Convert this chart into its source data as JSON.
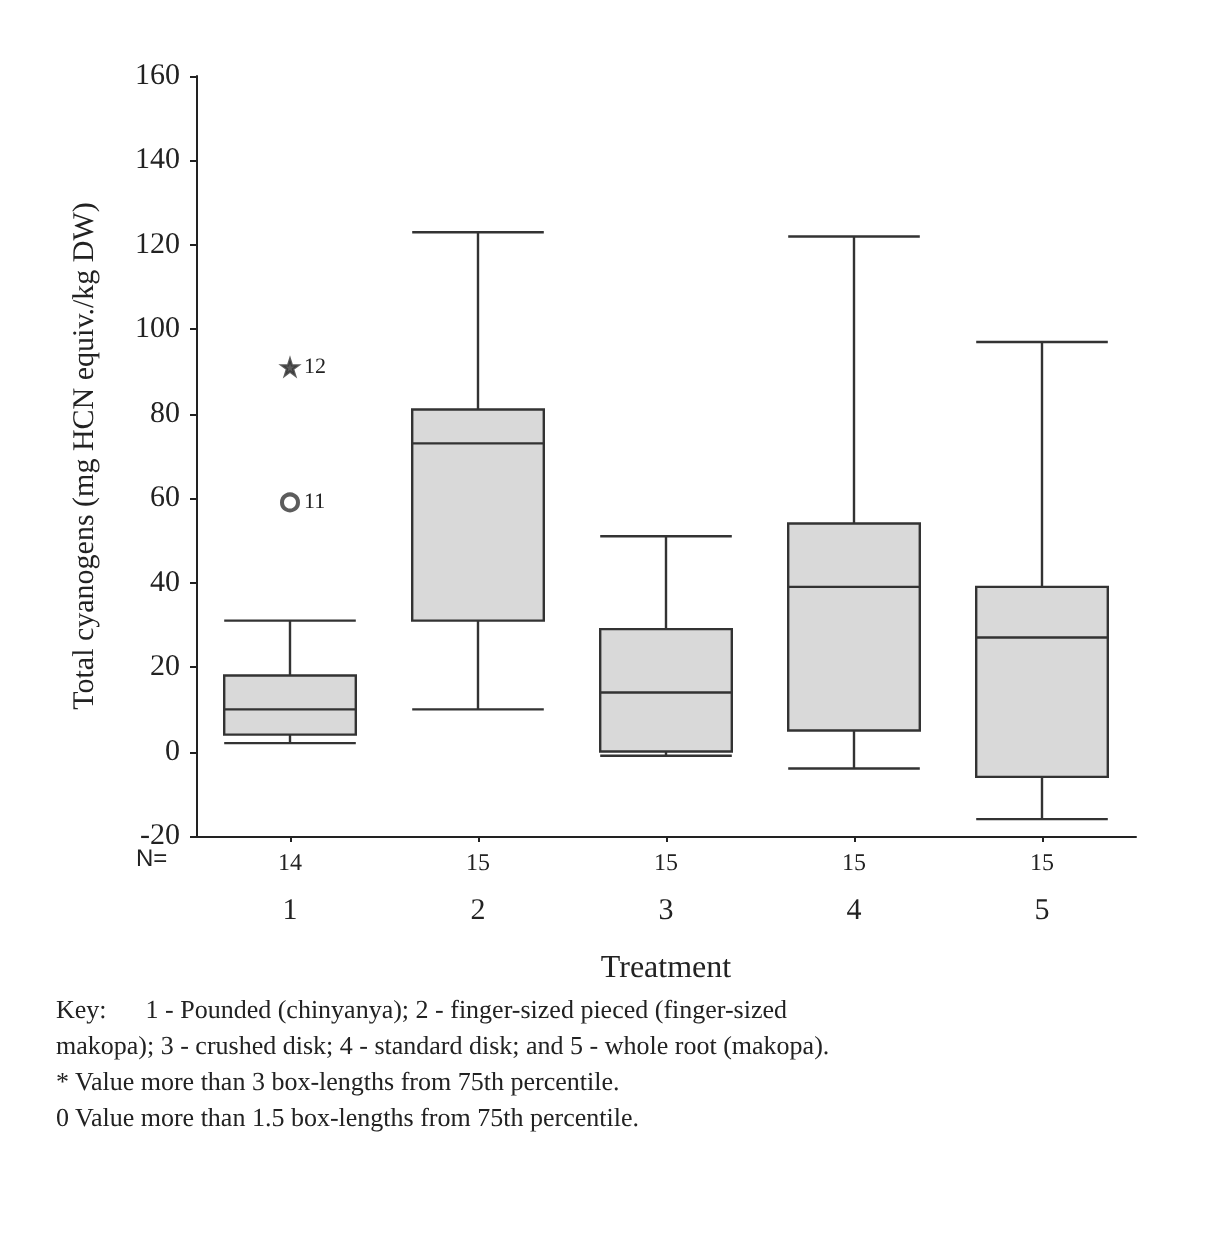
{
  "chart_data": {
    "type": "box",
    "xlabel": "Treatment",
    "ylabel": "Total cyanogens (mg HCN equiv./kg DW)",
    "categories": [
      "1",
      "2",
      "3",
      "4",
      "5"
    ],
    "color": "#d9d9d9",
    "boxes": [
      {
        "low": 2,
        "q1": 4,
        "median": 10,
        "q3": 18,
        "high": 31
      },
      {
        "low": 10,
        "q1": 31,
        "median": 73,
        "q3": 81,
        "high": 123
      },
      {
        "low": -1,
        "q1": 0,
        "median": 14,
        "q3": 29,
        "high": 51
      },
      {
        "low": -4,
        "q1": 5,
        "median": 39,
        "q3": 54,
        "high": 122
      },
      {
        "low": -16,
        "q1": -6,
        "median": 27,
        "q3": 39,
        "high": 97
      }
    ],
    "series": [
      {
        "type": "scatter",
        "x": [
          "1"
        ],
        "values": [
          59
        ],
        "marker": "circle",
        "color": "#333333"
      },
      {
        "type": "scatter",
        "x": [
          "1"
        ],
        "values": [
          91
        ],
        "marker": "star",
        "color": "#333333"
      }
    ],
    "ylim": [
      -20,
      160
    ],
    "yticks": [
      -20,
      0,
      20,
      40,
      60,
      80,
      100,
      120,
      140,
      160
    ],
    "annotations": [
      {
        "text": "11",
        "x": "1",
        "y": 59
      },
      {
        "text": "12",
        "x": "1",
        "y": 91
      },
      "N=",
      "14",
      "15",
      "15",
      "15",
      "15",
      "Key:      1 - Pounded (chinyanya); 2 - finger-sized pieced (finger-sized",
      "makopa); 3 - crushed disk; 4 - standard disk; and 5 - whole root (makopa).",
      "* Value more than 3 box-lengths from 75th percentile.",
      "0 Value more than 1.5 box-lengths from 75th percentile."
    ]
  }
}
